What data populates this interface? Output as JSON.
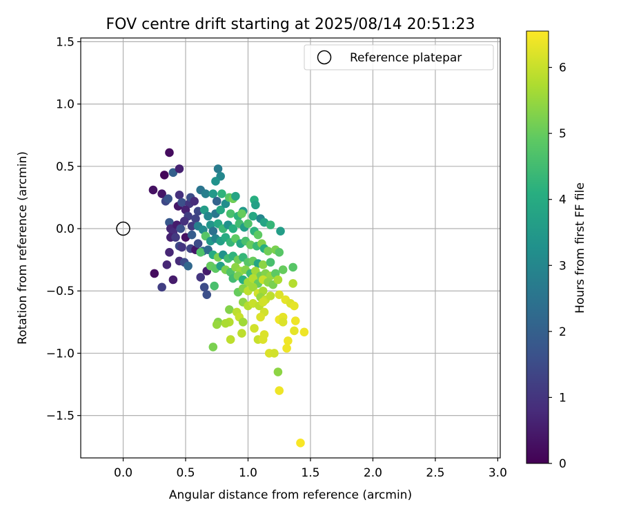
{
  "chart_data": {
    "type": "scatter",
    "title": "FOV centre drift starting at 2025/08/14 20:51:23",
    "xlabel": "Angular distance from reference (arcmin)",
    "ylabel": "Rotation from reference (arcmin)",
    "xlim": [
      -0.34,
      3.02
    ],
    "ylim": [
      -1.84,
      1.53
    ],
    "xticks": [
      0.0,
      0.5,
      1.0,
      1.5,
      2.0,
      2.5,
      3.0
    ],
    "xtick_labels": [
      "0.0",
      "0.5",
      "1.0",
      "1.5",
      "2.0",
      "2.5",
      "3.0"
    ],
    "yticks": [
      -1.5,
      -1.0,
      -0.5,
      0.0,
      0.5,
      1.0,
      1.5
    ],
    "ytick_labels": [
      "−1.5",
      "−1.0",
      "−0.5",
      "0.0",
      "0.5",
      "1.0",
      "1.5"
    ],
    "grid": true,
    "legend": {
      "position": "top-right",
      "entries": [
        {
          "label": "Reference platepar",
          "marker": "open-circle"
        }
      ]
    },
    "reference_point": {
      "x": 0.0,
      "y": 0.0
    },
    "colorbar": {
      "label": "Hours from first FF file",
      "colormap": "viridis",
      "range": [
        0,
        6.55
      ],
      "ticks": [
        0,
        1,
        2,
        3,
        4,
        5,
        6
      ],
      "tick_labels": [
        "0",
        "1",
        "2",
        "3",
        "4",
        "5",
        "6"
      ]
    },
    "points": [
      {
        "x": 0.37,
        "y": 0.61,
        "c": 0.2
      },
      {
        "x": 0.33,
        "y": 0.43,
        "c": 0.1
      },
      {
        "x": 0.4,
        "y": 0.45,
        "c": 2.0
      },
      {
        "x": 0.45,
        "y": 0.48,
        "c": 0.6
      },
      {
        "x": 0.24,
        "y": 0.31,
        "c": 0.3
      },
      {
        "x": 0.31,
        "y": 0.28,
        "c": 0.4
      },
      {
        "x": 0.34,
        "y": 0.22,
        "c": 1.4
      },
      {
        "x": 0.36,
        "y": 0.24,
        "c": 1.7
      },
      {
        "x": 0.45,
        "y": 0.27,
        "c": 0.9
      },
      {
        "x": 0.44,
        "y": 0.18,
        "c": 0.4
      },
      {
        "x": 0.47,
        "y": 0.21,
        "c": 1.6
      },
      {
        "x": 0.53,
        "y": 0.2,
        "c": 1.0
      },
      {
        "x": 0.54,
        "y": 0.25,
        "c": 1.5
      },
      {
        "x": 0.57,
        "y": 0.22,
        "c": 0.8
      },
      {
        "x": 0.5,
        "y": 0.15,
        "c": 0.6
      },
      {
        "x": 0.52,
        "y": 0.1,
        "c": 1.2
      },
      {
        "x": 0.6,
        "y": 0.14,
        "c": 1.4
      },
      {
        "x": 0.62,
        "y": 0.31,
        "c": 2.5
      },
      {
        "x": 0.66,
        "y": 0.28,
        "c": 2.8
      },
      {
        "x": 0.37,
        "y": 0.05,
        "c": 1.8
      },
      {
        "x": 0.38,
        "y": 0.0,
        "c": 0.7
      },
      {
        "x": 0.4,
        "y": -0.03,
        "c": 0.8
      },
      {
        "x": 0.43,
        "y": 0.03,
        "c": 0.5
      },
      {
        "x": 0.46,
        "y": 0.0,
        "c": 1.6
      },
      {
        "x": 0.49,
        "y": 0.06,
        "c": 0.9
      },
      {
        "x": 0.55,
        "y": 0.02,
        "c": 1.1
      },
      {
        "x": 0.58,
        "y": 0.08,
        "c": 1.3
      },
      {
        "x": 0.38,
        "y": -0.07,
        "c": 0.6
      },
      {
        "x": 0.42,
        "y": -0.07,
        "c": 1.1
      },
      {
        "x": 0.5,
        "y": -0.07,
        "c": 0.3
      },
      {
        "x": 0.55,
        "y": -0.05,
        "c": 1.9
      },
      {
        "x": 0.45,
        "y": -0.14,
        "c": 1.4
      },
      {
        "x": 0.37,
        "y": -0.19,
        "c": 0.7
      },
      {
        "x": 0.47,
        "y": -0.15,
        "c": 1.0
      },
      {
        "x": 0.54,
        "y": -0.16,
        "c": 1.3
      },
      {
        "x": 0.58,
        "y": -0.17,
        "c": 0.4
      },
      {
        "x": 0.6,
        "y": -0.12,
        "c": 1.5
      },
      {
        "x": 0.64,
        "y": -0.18,
        "c": 2.2
      },
      {
        "x": 0.45,
        "y": -0.26,
        "c": 0.8
      },
      {
        "x": 0.49,
        "y": -0.27,
        "c": 1.5
      },
      {
        "x": 0.52,
        "y": -0.3,
        "c": 2.2
      },
      {
        "x": 0.35,
        "y": -0.29,
        "c": 0.7
      },
      {
        "x": 0.25,
        "y": -0.36,
        "c": 0.2
      },
      {
        "x": 0.4,
        "y": -0.41,
        "c": 0.5
      },
      {
        "x": 0.31,
        "y": -0.47,
        "c": 1.2
      },
      {
        "x": 0.62,
        "y": -0.39,
        "c": 1.0
      },
      {
        "x": 0.65,
        "y": -0.47,
        "c": 1.5
      },
      {
        "x": 0.67,
        "y": -0.53,
        "c": 1.6
      },
      {
        "x": 0.67,
        "y": -0.34,
        "c": 0.5
      },
      {
        "x": 0.7,
        "y": -0.3,
        "c": 1.3
      },
      {
        "x": 0.76,
        "y": 0.48,
        "c": 2.7
      },
      {
        "x": 0.78,
        "y": 0.42,
        "c": 3.0
      },
      {
        "x": 0.74,
        "y": 0.38,
        "c": 3.3
      },
      {
        "x": 0.72,
        "y": 0.28,
        "c": 3.5
      },
      {
        "x": 0.79,
        "y": 0.28,
        "c": 4.2
      },
      {
        "x": 0.75,
        "y": 0.22,
        "c": 2.1
      },
      {
        "x": 0.74,
        "y": 0.12,
        "c": 2.6
      },
      {
        "x": 0.65,
        "y": 0.15,
        "c": 3.6
      },
      {
        "x": 0.68,
        "y": 0.1,
        "c": 3.0
      },
      {
        "x": 0.78,
        "y": 0.15,
        "c": 3.9
      },
      {
        "x": 0.82,
        "y": 0.2,
        "c": 3.2
      },
      {
        "x": 0.85,
        "y": 0.25,
        "c": 4.8
      },
      {
        "x": 0.88,
        "y": 0.24,
        "c": 5.1
      },
      {
        "x": 0.9,
        "y": 0.26,
        "c": 3.8
      },
      {
        "x": 0.86,
        "y": 0.12,
        "c": 4.6
      },
      {
        "x": 0.92,
        "y": 0.1,
        "c": 4.2
      },
      {
        "x": 0.96,
        "y": 0.14,
        "c": 3.5
      },
      {
        "x": 0.95,
        "y": 0.12,
        "c": 5.0
      },
      {
        "x": 1.05,
        "y": 0.23,
        "c": 4.1
      },
      {
        "x": 1.06,
        "y": 0.19,
        "c": 3.7
      },
      {
        "x": 1.04,
        "y": 0.1,
        "c": 3.9
      },
      {
        "x": 1.1,
        "y": 0.08,
        "c": 3.0
      },
      {
        "x": 1.13,
        "y": 0.05,
        "c": 3.8
      },
      {
        "x": 1.18,
        "y": 0.03,
        "c": 4.3
      },
      {
        "x": 1.26,
        "y": -0.02,
        "c": 3.6
      },
      {
        "x": 0.6,
        "y": 0.02,
        "c": 2.8
      },
      {
        "x": 0.64,
        "y": -0.01,
        "c": 3.1
      },
      {
        "x": 0.7,
        "y": 0.03,
        "c": 3.4
      },
      {
        "x": 0.72,
        "y": -0.02,
        "c": 2.4
      },
      {
        "x": 0.76,
        "y": 0.04,
        "c": 3.9
      },
      {
        "x": 0.8,
        "y": 0.0,
        "c": 4.4
      },
      {
        "x": 0.84,
        "y": 0.03,
        "c": 3.3
      },
      {
        "x": 0.88,
        "y": 0.0,
        "c": 4.1
      },
      {
        "x": 0.93,
        "y": 0.04,
        "c": 4.5
      },
      {
        "x": 0.97,
        "y": 0.01,
        "c": 3.6
      },
      {
        "x": 1.0,
        "y": 0.04,
        "c": 4.7
      },
      {
        "x": 1.05,
        "y": -0.02,
        "c": 4.2
      },
      {
        "x": 1.08,
        "y": -0.05,
        "c": 4.9
      },
      {
        "x": 0.66,
        "y": -0.06,
        "c": 4.8
      },
      {
        "x": 0.7,
        "y": -0.1,
        "c": 3.5
      },
      {
        "x": 0.74,
        "y": -0.08,
        "c": 2.9
      },
      {
        "x": 0.78,
        "y": -0.1,
        "c": 3.7
      },
      {
        "x": 0.82,
        "y": -0.07,
        "c": 4.0
      },
      {
        "x": 0.86,
        "y": -0.11,
        "c": 4.3
      },
      {
        "x": 0.9,
        "y": -0.08,
        "c": 4.9
      },
      {
        "x": 0.94,
        "y": -0.12,
        "c": 3.9
      },
      {
        "x": 0.98,
        "y": -0.1,
        "c": 4.6
      },
      {
        "x": 1.02,
        "y": -0.13,
        "c": 5.0
      },
      {
        "x": 1.07,
        "y": -0.14,
        "c": 4.4
      },
      {
        "x": 1.11,
        "y": -0.12,
        "c": 5.3
      },
      {
        "x": 1.13,
        "y": -0.16,
        "c": 4.1
      },
      {
        "x": 1.16,
        "y": -0.18,
        "c": 5.1
      },
      {
        "x": 1.22,
        "y": -0.17,
        "c": 5.2
      },
      {
        "x": 1.25,
        "y": -0.19,
        "c": 4.8
      },
      {
        "x": 0.62,
        "y": -0.19,
        "c": 4.7
      },
      {
        "x": 0.68,
        "y": -0.17,
        "c": 2.3
      },
      {
        "x": 0.72,
        "y": -0.21,
        "c": 4.0
      },
      {
        "x": 0.76,
        "y": -0.23,
        "c": 5.2
      },
      {
        "x": 0.8,
        "y": -0.21,
        "c": 3.3
      },
      {
        "x": 0.84,
        "y": -0.24,
        "c": 4.5
      },
      {
        "x": 0.88,
        "y": -0.22,
        "c": 4.2
      },
      {
        "x": 0.92,
        "y": -0.25,
        "c": 5.1
      },
      {
        "x": 0.96,
        "y": -0.23,
        "c": 4.3
      },
      {
        "x": 1.0,
        "y": -0.27,
        "c": 4.8
      },
      {
        "x": 1.04,
        "y": -0.26,
        "c": 5.0
      },
      {
        "x": 1.08,
        "y": -0.28,
        "c": 3.8
      },
      {
        "x": 1.12,
        "y": -0.29,
        "c": 5.4
      },
      {
        "x": 1.18,
        "y": -0.27,
        "c": 4.6
      },
      {
        "x": 0.7,
        "y": -0.3,
        "c": 5.0
      },
      {
        "x": 0.74,
        "y": -0.32,
        "c": 4.9
      },
      {
        "x": 0.78,
        "y": -0.3,
        "c": 3.7
      },
      {
        "x": 0.82,
        "y": -0.33,
        "c": 5.2
      },
      {
        "x": 0.86,
        "y": -0.35,
        "c": 4.7
      },
      {
        "x": 0.9,
        "y": -0.31,
        "c": 5.4
      },
      {
        "x": 0.94,
        "y": -0.34,
        "c": 5.5
      },
      {
        "x": 0.98,
        "y": -0.33,
        "c": 5.3
      },
      {
        "x": 1.02,
        "y": -0.36,
        "c": 4.4
      },
      {
        "x": 1.06,
        "y": -0.34,
        "c": 5.6
      },
      {
        "x": 1.1,
        "y": -0.38,
        "c": 5.1
      },
      {
        "x": 1.14,
        "y": -0.36,
        "c": 5.3
      },
      {
        "x": 1.18,
        "y": -0.38,
        "c": 5.5
      },
      {
        "x": 1.22,
        "y": -0.36,
        "c": 4.9
      },
      {
        "x": 1.28,
        "y": -0.33,
        "c": 5.0
      },
      {
        "x": 1.36,
        "y": -0.31,
        "c": 4.8
      },
      {
        "x": 0.88,
        "y": -0.4,
        "c": 4.5
      },
      {
        "x": 0.92,
        "y": -0.38,
        "c": 5.2
      },
      {
        "x": 0.96,
        "y": -0.41,
        "c": 4.1
      },
      {
        "x": 1.0,
        "y": -0.43,
        "c": 5.6
      },
      {
        "x": 1.04,
        "y": -0.4,
        "c": 5.8
      },
      {
        "x": 1.08,
        "y": -0.44,
        "c": 5.0
      },
      {
        "x": 1.12,
        "y": -0.41,
        "c": 6.0
      },
      {
        "x": 1.16,
        "y": -0.43,
        "c": 5.4
      },
      {
        "x": 1.2,
        "y": -0.45,
        "c": 5.2
      },
      {
        "x": 1.24,
        "y": -0.41,
        "c": 5.7
      },
      {
        "x": 0.73,
        "y": -0.46,
        "c": 4.6
      },
      {
        "x": 0.92,
        "y": -0.51,
        "c": 5.0
      },
      {
        "x": 0.96,
        "y": -0.48,
        "c": 5.3
      },
      {
        "x": 1.0,
        "y": -0.5,
        "c": 5.9
      },
      {
        "x": 1.04,
        "y": -0.47,
        "c": 5.6
      },
      {
        "x": 1.08,
        "y": -0.52,
        "c": 6.1
      },
      {
        "x": 1.12,
        "y": -0.5,
        "c": 5.7
      },
      {
        "x": 1.36,
        "y": -0.44,
        "c": 5.8
      },
      {
        "x": 1.1,
        "y": -0.55,
        "c": 5.5
      },
      {
        "x": 1.14,
        "y": -0.57,
        "c": 6.0
      },
      {
        "x": 1.18,
        "y": -0.54,
        "c": 5.9
      },
      {
        "x": 1.25,
        "y": -0.53,
        "c": 6.2
      },
      {
        "x": 0.96,
        "y": -0.59,
        "c": 5.4
      },
      {
        "x": 1.0,
        "y": -0.62,
        "c": 5.8
      },
      {
        "x": 1.04,
        "y": -0.6,
        "c": 6.0
      },
      {
        "x": 1.09,
        "y": -0.62,
        "c": 5.9
      },
      {
        "x": 1.12,
        "y": -0.59,
        "c": 6.1
      },
      {
        "x": 1.3,
        "y": -0.57,
        "c": 6.3
      },
      {
        "x": 1.34,
        "y": -0.6,
        "c": 6.2
      },
      {
        "x": 1.37,
        "y": -0.62,
        "c": 6.3
      },
      {
        "x": 0.85,
        "y": -0.65,
        "c": 5.3
      },
      {
        "x": 0.91,
        "y": -0.67,
        "c": 5.9
      },
      {
        "x": 1.13,
        "y": -0.67,
        "c": 6.1
      },
      {
        "x": 0.93,
        "y": -0.71,
        "c": 6.0
      },
      {
        "x": 1.1,
        "y": -0.71,
        "c": 6.2
      },
      {
        "x": 0.85,
        "y": -0.75,
        "c": 5.8
      },
      {
        "x": 0.96,
        "y": -0.75,
        "c": 5.6
      },
      {
        "x": 0.76,
        "y": -0.75,
        "c": 5.3
      },
      {
        "x": 0.75,
        "y": -0.77,
        "c": 5.5
      },
      {
        "x": 0.82,
        "y": -0.76,
        "c": 5.7
      },
      {
        "x": 1.25,
        "y": -0.73,
        "c": 6.4
      },
      {
        "x": 1.28,
        "y": -0.71,
        "c": 6.3
      },
      {
        "x": 1.28,
        "y": -0.75,
        "c": 6.2
      },
      {
        "x": 1.38,
        "y": -0.74,
        "c": 6.4
      },
      {
        "x": 1.05,
        "y": -0.8,
        "c": 6.1
      },
      {
        "x": 0.95,
        "y": -0.84,
        "c": 5.9
      },
      {
        "x": 1.13,
        "y": -0.85,
        "c": 6.2
      },
      {
        "x": 1.37,
        "y": -0.82,
        "c": 6.3
      },
      {
        "x": 1.45,
        "y": -0.83,
        "c": 6.4
      },
      {
        "x": 0.86,
        "y": -0.89,
        "c": 5.9
      },
      {
        "x": 1.08,
        "y": -0.89,
        "c": 6.0
      },
      {
        "x": 1.12,
        "y": -0.89,
        "c": 6.2
      },
      {
        "x": 1.32,
        "y": -0.9,
        "c": 6.4
      },
      {
        "x": 0.72,
        "y": -0.95,
        "c": 5.2
      },
      {
        "x": 1.31,
        "y": -0.96,
        "c": 6.4
      },
      {
        "x": 1.17,
        "y": -1.0,
        "c": 6.2
      },
      {
        "x": 1.21,
        "y": -1.0,
        "c": 6.1
      },
      {
        "x": 1.24,
        "y": -1.15,
        "c": 5.4
      },
      {
        "x": 1.25,
        "y": -1.3,
        "c": 6.4
      },
      {
        "x": 1.42,
        "y": -1.72,
        "c": 6.5
      }
    ]
  }
}
